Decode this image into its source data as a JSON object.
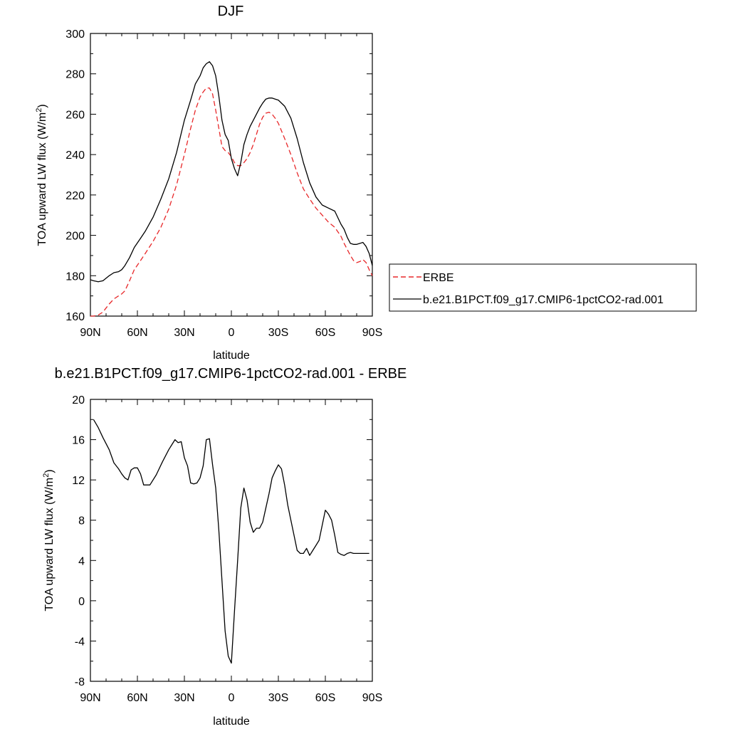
{
  "chart_data": [
    {
      "type": "line",
      "title": "DJF",
      "xlabel": "latitude",
      "ylabel_main": "TOA upward LW flux (W/m",
      "ylabel_sup": "2",
      "ylabel_close": ")",
      "xlim": [
        -90,
        90
      ],
      "ylim": [
        160,
        300
      ],
      "x_ticks": [
        -90,
        -60,
        -30,
        0,
        30,
        60,
        90
      ],
      "x_tick_labels": [
        "90N",
        "60N",
        "30N",
        "0",
        "30S",
        "60S",
        "90S"
      ],
      "y_ticks": [
        160,
        180,
        200,
        220,
        240,
        260,
        280,
        300
      ],
      "y_tick_labels": [
        "160",
        "180",
        "200",
        "220",
        "240",
        "260",
        "280",
        "300"
      ],
      "legend_position": "right",
      "series": [
        {
          "name": "ERBE",
          "color": "#e8282a",
          "dash": "dashed",
          "x": [
            -90,
            -88,
            -85,
            -82,
            -78,
            -75,
            -72,
            -70,
            -68,
            -65,
            -62,
            -58,
            -55,
            -50,
            -45,
            -40,
            -35,
            -30,
            -26,
            -23,
            -20,
            -18,
            -16,
            -14,
            -12,
            -10,
            -8,
            -6,
            -4,
            -2,
            0,
            2,
            4,
            6,
            8,
            10,
            12,
            14,
            16,
            18,
            20,
            22,
            24,
            26,
            28,
            30,
            34,
            38,
            42,
            46,
            50,
            54,
            58,
            62,
            66,
            70,
            72,
            74,
            76,
            78,
            80,
            82,
            84,
            86,
            88,
            90
          ],
          "y": [
            160,
            160,
            160.5,
            162,
            166,
            168.5,
            170,
            171,
            172.5,
            177.5,
            183,
            187.5,
            191,
            197,
            204,
            213,
            225,
            240,
            253,
            262,
            268.5,
            271,
            273,
            273,
            270,
            262,
            253,
            244,
            242,
            241,
            239,
            236,
            234.5,
            234.5,
            236,
            238,
            241,
            245,
            250,
            255,
            258.5,
            260.5,
            261,
            260,
            258,
            255.5,
            248,
            240,
            231,
            223,
            218,
            213.5,
            210,
            206.5,
            204,
            199.5,
            196,
            193,
            190,
            187.5,
            186.5,
            187,
            188,
            186.5,
            183,
            180
          ]
        },
        {
          "name": "b.e21.B1PCT.f09_g17.CMIP6-1pctCO2-rad.001",
          "color": "#000000",
          "dash": "solid",
          "x": [
            -90,
            -88,
            -85,
            -82,
            -78,
            -75,
            -72,
            -70,
            -68,
            -65,
            -62,
            -58,
            -55,
            -50,
            -45,
            -40,
            -35,
            -30,
            -26,
            -23,
            -20,
            -18,
            -16,
            -14,
            -12,
            -10,
            -8,
            -6,
            -4,
            -2,
            0,
            2,
            4,
            6,
            8,
            10,
            12,
            14,
            16,
            18,
            20,
            22,
            24,
            26,
            28,
            30,
            34,
            38,
            42,
            46,
            50,
            54,
            58,
            62,
            66,
            70,
            72,
            74,
            76,
            78,
            80,
            82,
            84,
            86,
            88,
            90
          ],
          "y": [
            178,
            177.5,
            177,
            177.5,
            180,
            181.5,
            182,
            183,
            185,
            189,
            194,
            198.5,
            202,
            209,
            218,
            228,
            241,
            257,
            267,
            275,
            279,
            283,
            285,
            286,
            284,
            279,
            269,
            257,
            250,
            247,
            238,
            233,
            229.5,
            236,
            245,
            250,
            254,
            257,
            260,
            263,
            265.5,
            267.5,
            268,
            268,
            267.5,
            267,
            264,
            258,
            248,
            236,
            226,
            219,
            215,
            213.5,
            212,
            205.5,
            203,
            199,
            196,
            195.5,
            195.5,
            196,
            196.5,
            194.5,
            191,
            185
          ]
        }
      ]
    },
    {
      "type": "line",
      "title": "b.e21.B1PCT.f09_g17.CMIP6-1pctCO2-rad.001 - ERBE",
      "xlabel": "latitude",
      "ylabel_main": "TOA upward LW flux (W/m",
      "ylabel_sup": "2",
      "ylabel_close": ")",
      "xlim": [
        -90,
        90
      ],
      "ylim": [
        -8,
        20
      ],
      "x_ticks": [
        -90,
        -60,
        -30,
        0,
        30,
        60,
        90
      ],
      "x_tick_labels": [
        "90N",
        "60N",
        "30N",
        "0",
        "30S",
        "60S",
        "90S"
      ],
      "y_ticks": [
        -8,
        -4,
        0,
        4,
        8,
        12,
        16,
        20
      ],
      "y_tick_labels": [
        "-8",
        "-4",
        "0",
        "4",
        "8",
        "12",
        "16",
        "20"
      ],
      "series": [
        {
          "color": "#000000",
          "dash": "solid",
          "x": [
            -88,
            -85,
            -82,
            -78,
            -75,
            -72,
            -70,
            -68,
            -66,
            -64,
            -62,
            -60,
            -58,
            -56,
            -52,
            -48,
            -44,
            -40,
            -38,
            -36,
            -34,
            -32,
            -30,
            -28,
            -26,
            -24,
            -22,
            -20,
            -18,
            -16,
            -14,
            -12,
            -10,
            -8,
            -6,
            -4,
            -2,
            0,
            2,
            4,
            6,
            8,
            10,
            12,
            14,
            16,
            18,
            20,
            22,
            24,
            26,
            28,
            30,
            32,
            34,
            36,
            38,
            40,
            42,
            44,
            46,
            48,
            50,
            52,
            54,
            56,
            58,
            60,
            62,
            64,
            66,
            68,
            70,
            72,
            74,
            76,
            78,
            80,
            82,
            84,
            86,
            88
          ],
          "y": [
            18,
            17.2,
            16.2,
            15,
            13.7,
            13.1,
            12.6,
            12.2,
            12.0,
            13.0,
            13.2,
            13.2,
            12.6,
            11.5,
            11.5,
            12.5,
            13.8,
            15.0,
            15.5,
            16.0,
            15.7,
            15.8,
            14.2,
            13.4,
            11.7,
            11.6,
            11.7,
            12.2,
            13.4,
            16.0,
            16.1,
            13.5,
            11.2,
            7.0,
            2.0,
            -3.0,
            -5.5,
            -6.2,
            -1.0,
            4.0,
            9.2,
            11.2,
            10.0,
            7.8,
            6.8,
            7.2,
            7.2,
            7.8,
            9.2,
            10.6,
            12.2,
            12.9,
            13.5,
            13.1,
            11.5,
            9.5,
            8.0,
            6.5,
            5.0,
            4.7,
            4.7,
            5.2,
            4.5,
            5.0,
            5.5,
            6.0,
            7.5,
            9.0,
            8.6,
            8.0,
            6.5,
            4.8,
            4.6,
            4.5,
            4.7,
            4.8,
            4.7,
            4.7,
            4.7,
            4.7,
            4.7,
            4.7
          ]
        }
      ]
    }
  ]
}
